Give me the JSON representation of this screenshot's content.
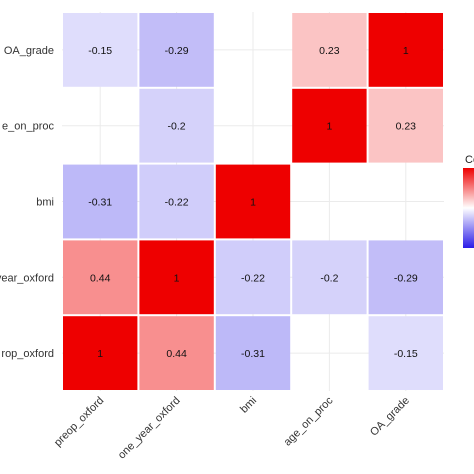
{
  "chart_data": {
    "type": "heatmap",
    "x_categories": [
      "preop_oxford",
      "one_year_oxford",
      "bmi",
      "age_on_proc",
      "OA_grade"
    ],
    "y_categories": [
      "preop_oxford",
      "one_year_oxford",
      "bmi",
      "age_on_proc",
      "OA_grade"
    ],
    "y_tick_labels_visible": [
      "rop_oxford",
      "year_oxford",
      "bmi",
      "e_on_proc",
      "OA_grade"
    ],
    "cells": [
      {
        "x": "preop_oxford",
        "y": "preop_oxford",
        "value": 1,
        "label": "1"
      },
      {
        "x": "one_year_oxford",
        "y": "preop_oxford",
        "value": 0.44,
        "label": "0.44"
      },
      {
        "x": "bmi",
        "y": "preop_oxford",
        "value": -0.31,
        "label": "-0.31"
      },
      {
        "x": "OA_grade",
        "y": "preop_oxford",
        "value": -0.15,
        "label": "-0.15"
      },
      {
        "x": "preop_oxford",
        "y": "one_year_oxford",
        "value": 0.44,
        "label": "0.44"
      },
      {
        "x": "one_year_oxford",
        "y": "one_year_oxford",
        "value": 1,
        "label": "1"
      },
      {
        "x": "bmi",
        "y": "one_year_oxford",
        "value": -0.22,
        "label": "-0.22"
      },
      {
        "x": "age_on_proc",
        "y": "one_year_oxford",
        "value": -0.2,
        "label": "-0.2"
      },
      {
        "x": "OA_grade",
        "y": "one_year_oxford",
        "value": -0.29,
        "label": "-0.29"
      },
      {
        "x": "preop_oxford",
        "y": "bmi",
        "value": -0.31,
        "label": "-0.31"
      },
      {
        "x": "one_year_oxford",
        "y": "bmi",
        "value": -0.22,
        "label": "-0.22"
      },
      {
        "x": "bmi",
        "y": "bmi",
        "value": 1,
        "label": "1"
      },
      {
        "x": "one_year_oxford",
        "y": "age_on_proc",
        "value": -0.2,
        "label": "-0.2"
      },
      {
        "x": "age_on_proc",
        "y": "age_on_proc",
        "value": 1,
        "label": "1"
      },
      {
        "x": "OA_grade",
        "y": "age_on_proc",
        "value": 0.23,
        "label": "0.23"
      },
      {
        "x": "preop_oxford",
        "y": "OA_grade",
        "value": -0.15,
        "label": "-0.15"
      },
      {
        "x": "one_year_oxford",
        "y": "OA_grade",
        "value": -0.29,
        "label": "-0.29"
      },
      {
        "x": "age_on_proc",
        "y": "OA_grade",
        "value": 0.23,
        "label": "0.23"
      },
      {
        "x": "OA_grade",
        "y": "OA_grade",
        "value": 1,
        "label": "1"
      }
    ],
    "value_range": [
      -1,
      1
    ],
    "colors": {
      "low": "#2b1ce8",
      "mid": "#ffffff",
      "high": "#ee0000",
      "background": "#ffffff",
      "gridline": "#ebebeb"
    },
    "legend": {
      "title": "Ce",
      "position": "right",
      "visible_clipped": true
    },
    "grid": true,
    "x_tick_rotation_deg": 45
  }
}
